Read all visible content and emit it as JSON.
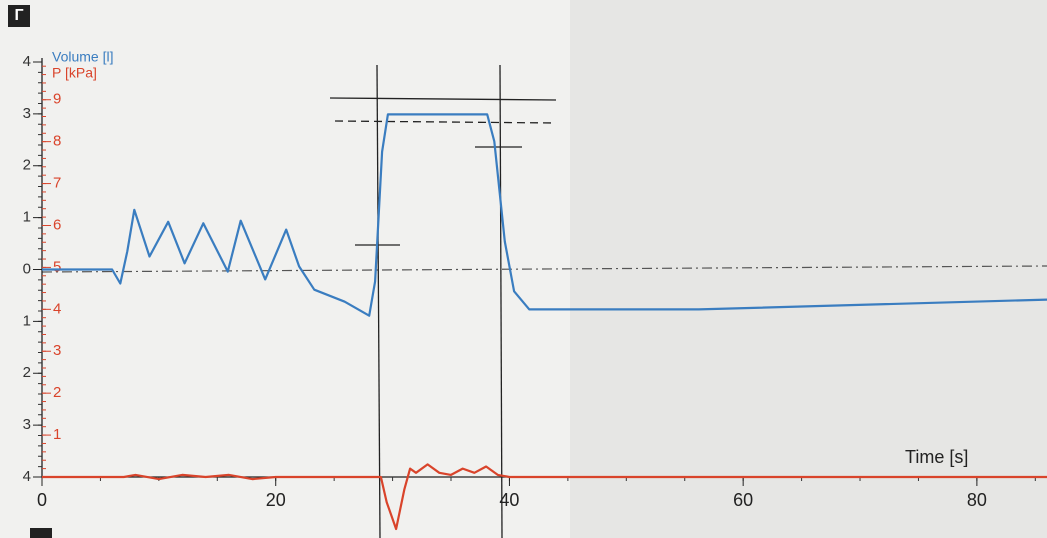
{
  "chart_data": {
    "type": "line",
    "panel_label": "Г",
    "x_label": "Time [s]",
    "y_label": "Volume [l]",
    "y2_label": "P [kPa]",
    "xlim": [
      0,
      86
    ],
    "xticks": [
      0,
      20,
      40,
      60,
      80
    ],
    "ylim": [
      -4,
      4
    ],
    "yticks": [
      4,
      3,
      2,
      1,
      0,
      {
        "value": -1,
        "label": "1"
      },
      {
        "value": -2,
        "label": "2"
      },
      {
        "value": -3,
        "label": "3"
      },
      {
        "value": -4,
        "label": "4"
      }
    ],
    "y2lim": [
      0,
      9.9
    ],
    "y2ticks": [
      1,
      2,
      3,
      4,
      5,
      6,
      7,
      8,
      9
    ],
    "series": [
      {
        "name": "Volume [l]",
        "color": "#3a7dc0",
        "axis": "y",
        "x": [
          0,
          6,
          6.7,
          7.3,
          7.9,
          9.2,
          10.8,
          12.2,
          13.8,
          15.9,
          17,
          19.1,
          20.9,
          22,
          23.3,
          25.9,
          28,
          28.5,
          29.1,
          29.6,
          38.1,
          38.7,
          39.6,
          40.4,
          41.7,
          56.2,
          86
        ],
        "values": [
          0,
          0,
          -0.27,
          0.35,
          1.15,
          0.25,
          0.92,
          0.12,
          0.89,
          -0.04,
          0.94,
          -0.19,
          0.77,
          0.06,
          -0.39,
          -0.62,
          -0.89,
          -0.23,
          2.27,
          2.99,
          2.99,
          2.47,
          0.54,
          -0.42,
          -0.77,
          -0.77,
          -0.58
        ]
      },
      {
        "name": "P [kPa]",
        "color": "#d9442b",
        "axis": "y2",
        "x": [
          0,
          7,
          8,
          10,
          12,
          14,
          16,
          18,
          20,
          29,
          29.5,
          30.3,
          31,
          31.5,
          32,
          33,
          34,
          35,
          36,
          37,
          38,
          39,
          40,
          86
        ],
        "values": [
          0,
          0,
          0.05,
          -0.05,
          0.05,
          0,
          0.05,
          -0.05,
          0,
          0,
          -0.6,
          -1.24,
          -0.3,
          0.2,
          0.1,
          0.3,
          0.1,
          0.05,
          0.2,
          0.1,
          0.25,
          0.05,
          0,
          0
        ]
      }
    ]
  }
}
